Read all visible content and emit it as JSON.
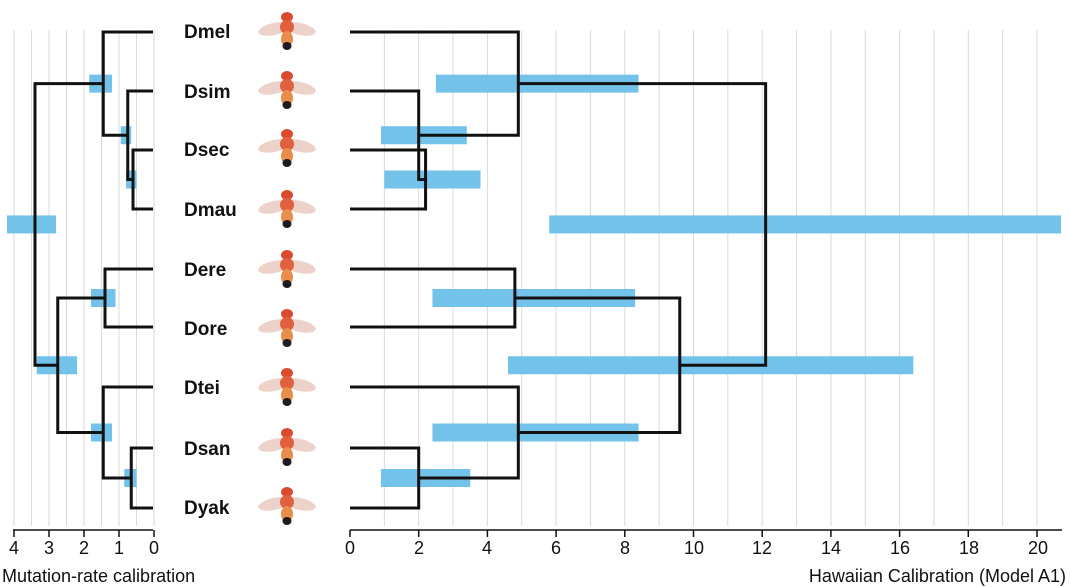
{
  "taxa": [
    "Dmel",
    "Dsim",
    "Dsec",
    "Dmau",
    "Dere",
    "Dore",
    "Dtei",
    "Dsan",
    "Dyak"
  ],
  "left_tree": {
    "axis_title": "Mutation-rate calibration",
    "ticks": [
      "4",
      "3",
      "2",
      "1",
      "0"
    ],
    "nodes": [
      {
        "children": [
          "Dsec",
          "Dmau"
        ],
        "age": 0.6,
        "hpd": [
          0.5,
          0.8
        ]
      },
      {
        "children": [
          "Dsim",
          "Dsec+Dmau"
        ],
        "age": 0.75,
        "hpd": [
          0.65,
          0.95
        ]
      },
      {
        "children": [
          "Dmel",
          "simulans clade"
        ],
        "age": 1.45,
        "hpd": [
          1.2,
          1.85
        ]
      },
      {
        "children": [
          "Dere",
          "Dore"
        ],
        "age": 1.4,
        "hpd": [
          1.1,
          1.8
        ]
      },
      {
        "children": [
          "Dsan",
          "Dyak"
        ],
        "age": 0.65,
        "hpd": [
          0.5,
          0.85
        ]
      },
      {
        "children": [
          "Dtei",
          "Dsan+Dyak"
        ],
        "age": 1.45,
        "hpd": [
          1.2,
          1.8
        ]
      },
      {
        "children": [
          "erecta group",
          "yakuba group"
        ],
        "age": 2.75,
        "hpd": [
          2.2,
          3.35
        ]
      },
      {
        "children": [
          "melanogaster group",
          "other"
        ],
        "age": 3.4,
        "hpd": [
          2.8,
          4.2
        ]
      }
    ]
  },
  "right_tree": {
    "axis_title": "Hawaiian Calibration (Model A1)",
    "ticks": [
      "0",
      "2",
      "4",
      "6",
      "8",
      "10",
      "12",
      "14",
      "16",
      "18",
      "20"
    ],
    "nodes": [
      {
        "children": [
          "Dsec",
          "Dmau"
        ],
        "age": 2.2,
        "hpd": [
          1.0,
          3.8
        ]
      },
      {
        "children": [
          "Dsim",
          "Dsec+Dmau"
        ],
        "age": 2.0,
        "hpd": [
          0.9,
          3.4
        ]
      },
      {
        "children": [
          "Dmel",
          "simulans clade"
        ],
        "age": 4.9,
        "hpd": [
          2.5,
          8.4
        ]
      },
      {
        "children": [
          "Dere",
          "Dore"
        ],
        "age": 4.8,
        "hpd": [
          2.4,
          8.3
        ]
      },
      {
        "children": [
          "Dsan",
          "Dyak"
        ],
        "age": 2.0,
        "hpd": [
          0.9,
          3.5
        ]
      },
      {
        "children": [
          "Dtei",
          "Dsan+Dyak"
        ],
        "age": 4.9,
        "hpd": [
          2.4,
          8.4
        ]
      },
      {
        "children": [
          "erecta group",
          "yakuba group"
        ],
        "age": 9.6,
        "hpd": [
          4.6,
          16.4
        ]
      },
      {
        "children": [
          "melanogaster group",
          "other"
        ],
        "age": 12.1,
        "hpd": [
          5.8,
          20.7
        ]
      }
    ]
  },
  "colors": {
    "hpd_bar": "#72c2ea",
    "branch": "#111111",
    "grid": "#d9d9d9"
  }
}
